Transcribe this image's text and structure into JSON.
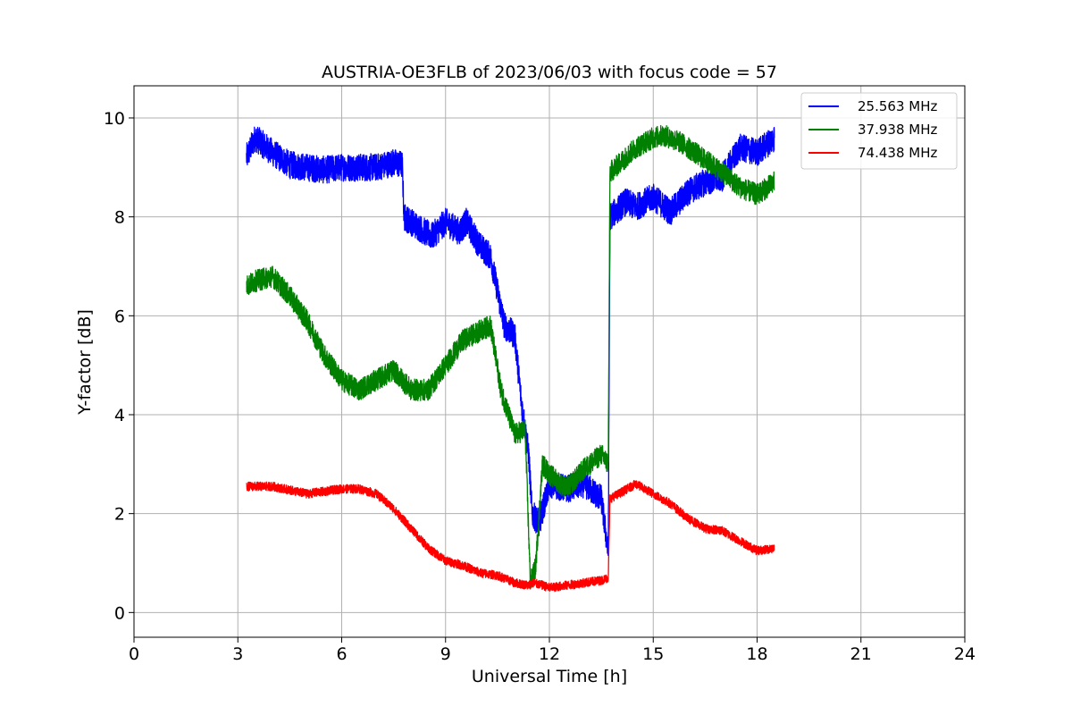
{
  "chart_data": {
    "type": "line",
    "title": "AUSTRIA-OE3FLB of 2023/06/03 with focus code = 57",
    "xlabel": "Universal Time [h]",
    "ylabel": "Y-factor [dB]",
    "xlim": [
      0,
      24
    ],
    "ylim": [
      -0.5,
      10.65
    ],
    "xticks": [
      "0",
      "3",
      "6",
      "9",
      "12",
      "15",
      "18",
      "21",
      "24"
    ],
    "yticks": [
      "0",
      "2",
      "4",
      "6",
      "8",
      "10"
    ],
    "grid": true,
    "legend_position": "top-right",
    "series": [
      {
        "name": "25.563 MHz",
        "color": "#0000ff",
        "noise": 0.28,
        "x": [
          3.25,
          3.5,
          4.0,
          4.5,
          5.0,
          5.5,
          6.0,
          6.5,
          7.0,
          7.5,
          7.75,
          7.8,
          8.2,
          8.6,
          9.0,
          9.4,
          9.6,
          10.0,
          10.3,
          10.5,
          10.7,
          11.0,
          11.2,
          11.4,
          11.5,
          11.7,
          12.0,
          12.5,
          13.0,
          13.5,
          13.7,
          13.75,
          14.2,
          14.5,
          15.0,
          15.5,
          16.0,
          16.5,
          17.0,
          17.5,
          18.0,
          18.5
        ],
        "y": [
          9.2,
          9.6,
          9.3,
          9.05,
          9.0,
          8.95,
          9.0,
          9.0,
          9.0,
          9.1,
          9.05,
          8.0,
          7.8,
          7.6,
          7.9,
          7.7,
          7.9,
          7.4,
          7.2,
          6.5,
          5.8,
          5.6,
          4.2,
          3.2,
          2.0,
          1.8,
          2.6,
          2.5,
          2.6,
          2.3,
          1.2,
          8.0,
          8.3,
          8.2,
          8.4,
          8.1,
          8.5,
          8.7,
          8.8,
          9.4,
          9.3,
          9.6
        ]
      },
      {
        "name": "37.938 MHz",
        "color": "#008000",
        "noise": 0.22,
        "x": [
          3.25,
          3.5,
          4.0,
          4.5,
          5.0,
          5.5,
          6.0,
          6.5,
          7.0,
          7.5,
          8.0,
          8.5,
          9.0,
          9.5,
          10.0,
          10.3,
          10.6,
          11.0,
          11.3,
          11.45,
          11.6,
          11.8,
          12.0,
          12.5,
          13.0,
          13.5,
          13.7,
          13.75,
          14.2,
          14.5,
          15.0,
          15.3,
          15.8,
          16.2,
          16.6,
          17.0,
          17.5,
          18.0,
          18.5
        ],
        "y": [
          6.6,
          6.7,
          6.8,
          6.4,
          5.9,
          5.2,
          4.7,
          4.5,
          4.7,
          4.9,
          4.5,
          4.5,
          5.0,
          5.5,
          5.7,
          5.8,
          4.5,
          3.6,
          3.7,
          0.6,
          0.9,
          3.0,
          2.8,
          2.5,
          2.9,
          3.2,
          3.0,
          8.9,
          9.2,
          9.4,
          9.6,
          9.65,
          9.5,
          9.3,
          9.1,
          8.9,
          8.6,
          8.45,
          8.7
        ]
      },
      {
        "name": "74.438 MHz",
        "color": "#ff0000",
        "noise": 0.09,
        "x": [
          3.25,
          4.0,
          5.0,
          6.0,
          6.5,
          7.0,
          7.5,
          8.0,
          8.5,
          9.0,
          9.5,
          10.0,
          10.5,
          11.0,
          11.4,
          11.5,
          11.8,
          12.0,
          12.5,
          13.0,
          13.5,
          13.7,
          13.75,
          14.0,
          14.5,
          15.0,
          15.5,
          16.0,
          16.5,
          17.0,
          17.5,
          18.0,
          18.5
        ],
        "y": [
          2.55,
          2.55,
          2.4,
          2.5,
          2.5,
          2.4,
          2.1,
          1.7,
          1.3,
          1.05,
          0.95,
          0.8,
          0.75,
          0.6,
          0.55,
          0.6,
          0.55,
          0.5,
          0.55,
          0.6,
          0.65,
          0.7,
          2.3,
          2.4,
          2.6,
          2.4,
          2.2,
          1.9,
          1.7,
          1.65,
          1.45,
          1.25,
          1.3
        ]
      }
    ]
  }
}
